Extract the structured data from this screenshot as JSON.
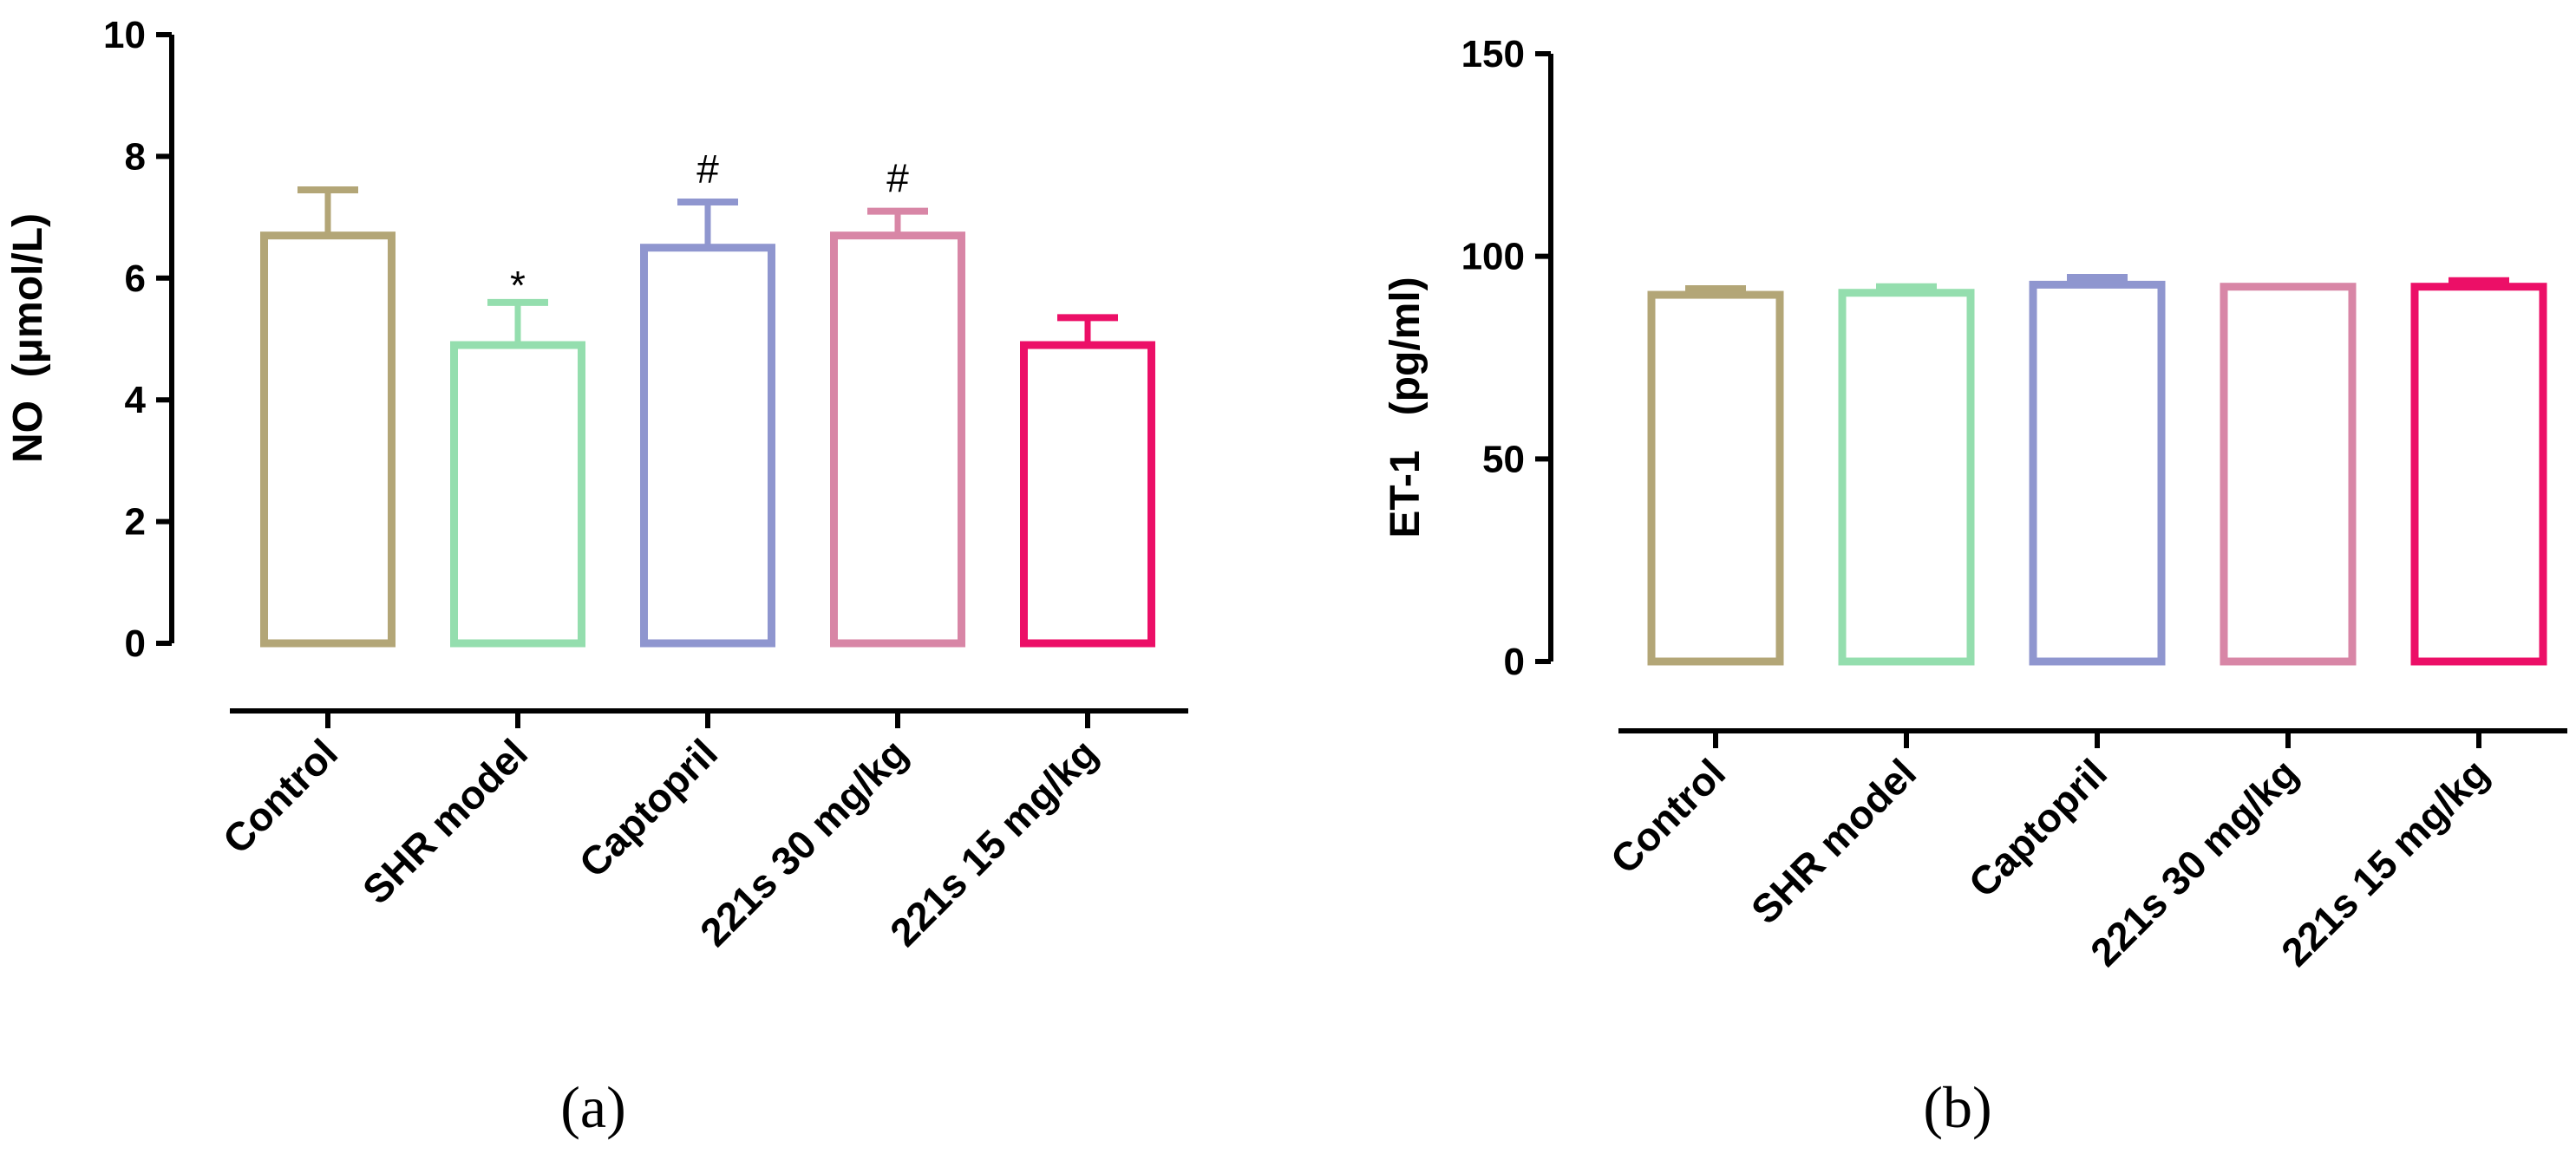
{
  "chart_data": [
    {
      "type": "bar",
      "panel_label": "(a)",
      "ylabel": "NO  (μmol/L)",
      "ylim": [
        0,
        10
      ],
      "yticks": [
        0,
        2,
        4,
        6,
        8,
        10
      ],
      "categories": [
        "Control",
        "SHR model",
        "Captopril",
        "221s 30 mg/kg",
        "221s 15 mg/kg"
      ],
      "values": [
        6.7,
        4.9,
        6.5,
        6.7,
        4.9
      ],
      "errors": [
        0.75,
        0.7,
        0.75,
        0.4,
        0.45
      ],
      "colors": [
        "#b3a677",
        "#94deae",
        "#8f96cf",
        "#d886a6",
        "#ec0f67"
      ],
      "annotations": [
        "",
        "*",
        "#",
        "#",
        ""
      ]
    },
    {
      "type": "bar",
      "panel_label": "(b)",
      "ylabel": "ET-1   (pg/ml)",
      "ylim": [
        0,
        150
      ],
      "yticks": [
        0,
        50,
        100,
        150
      ],
      "categories": [
        "Control",
        "SHR model",
        "Captopril",
        "221s 30 mg/kg",
        "221s 15 mg/kg"
      ],
      "values": [
        90.5,
        91.0,
        93.0,
        92.5,
        92.5
      ],
      "errors": [
        1.5,
        1.5,
        1.8,
        0.0,
        1.5
      ],
      "colors": [
        "#b3a677",
        "#94deae",
        "#8f96cf",
        "#d886a6",
        "#ec0f67"
      ],
      "annotations": [
        "",
        "",
        "",
        "",
        ""
      ]
    }
  ]
}
